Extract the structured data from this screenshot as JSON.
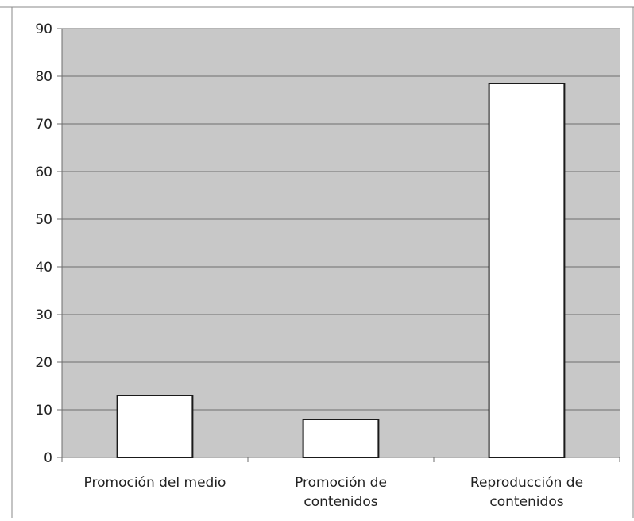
{
  "chart_data": {
    "type": "bar",
    "categories": [
      [
        "Promoción del medio"
      ],
      [
        "Promoción de",
        "contenidos"
      ],
      [
        "Reproducción de",
        "contenidos"
      ]
    ],
    "values": [
      13,
      8,
      78.5
    ],
    "ylim": [
      0,
      90
    ],
    "yticks": [
      "0",
      "10",
      "20",
      "30",
      "40",
      "50",
      "60",
      "70",
      "80",
      "90"
    ],
    "grid": true,
    "legend": "none",
    "colors": {
      "plot_background": "#c8c8c8",
      "bar_fill": "#ffffff",
      "bar_stroke": "#1a1a1a",
      "gridline": "#6e6e6e",
      "axis": "#6e6e6e"
    }
  }
}
